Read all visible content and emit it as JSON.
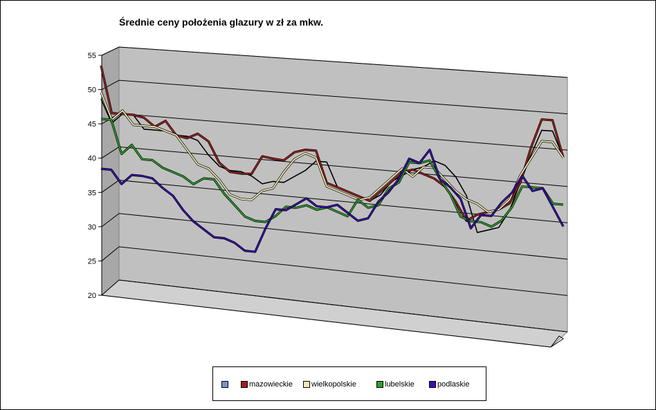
{
  "chart_data": {
    "type": "line",
    "title": "Średnie ceny położenia glazury w zł za mkw.",
    "ylim": [
      20,
      55
    ],
    "y_ticks": [
      "20",
      "25",
      "30",
      "35",
      "40",
      "45",
      "50",
      "55"
    ],
    "grid": true,
    "style": "3d",
    "legend_position": "bottom",
    "series": [
      {
        "name": "",
        "color": "#7f8fd6",
        "values": []
      },
      {
        "name": "mazowieckie",
        "color": "#9e2020",
        "values": [
          52,
          45,
          45,
          45,
          44.7,
          43.5,
          44.5,
          42.5,
          42.2,
          43,
          42,
          39,
          37.8,
          37.7,
          37.8,
          40.5,
          40.3,
          40.2,
          41.5,
          42,
          42,
          37.5,
          37,
          36.5,
          36,
          35.5,
          37,
          38.5,
          40,
          40.5,
          40,
          39.5,
          38.5,
          36.5,
          34,
          35,
          35.5,
          36,
          37,
          40,
          45,
          49,
          49,
          44
        ]
      },
      {
        "name": "wielkopolskie",
        "color": "#f0ecb4",
        "values": [
          48,
          44,
          45.5,
          43.5,
          43.5,
          43.5,
          43,
          42.5,
          40.5,
          38.5,
          38,
          36.5,
          34.5,
          34,
          34,
          35.5,
          36,
          38.5,
          40.5,
          41.5,
          41,
          37,
          36.5,
          36,
          35.5,
          36,
          37.5,
          39,
          40.5,
          39.5,
          41,
          41,
          39.5,
          38,
          37,
          36.5,
          35.5,
          36,
          37.5,
          41,
          43.5,
          46,
          46,
          44
        ]
      },
      {
        "name": "lubelskie",
        "color": "#2da02d",
        "values": [
          44,
          44,
          39,
          40.5,
          38.5,
          38.5,
          37.5,
          37,
          36.5,
          35.5,
          36.5,
          36.5,
          34.5,
          33,
          31.5,
          31,
          31,
          32,
          33.5,
          33.5,
          34,
          33.5,
          34,
          33.5,
          33,
          35.5,
          34.5,
          35,
          37.5,
          38.5,
          41.5,
          41.5,
          42,
          39.5,
          37.5,
          34.5,
          34,
          34,
          33.5,
          34.5,
          36.5,
          39.5,
          39.5,
          39.5,
          37.5,
          37.5
        ]
      },
      {
        "name": "podlaskie",
        "color": "#3a10b0",
        "values": [
          36.5,
          36.5,
          34.5,
          36,
          36,
          35.8,
          34.5,
          33.5,
          31.5,
          30,
          29,
          28,
          28,
          27.5,
          26.5,
          26.5,
          30,
          33,
          33,
          34,
          35,
          34,
          34,
          34.5,
          33.5,
          32.5,
          33,
          35.5,
          37,
          39,
          42,
          41.5,
          43.5,
          39.5,
          38.5,
          37,
          33,
          35,
          35,
          37,
          38.5,
          41,
          39,
          39.5,
          37,
          34.5
        ]
      },
      {
        "name": "",
        "color": "#000000",
        "values": [
          47,
          43.5,
          45,
          45,
          43,
          43,
          43,
          42.5,
          42.5,
          42,
          40,
          38.5,
          38,
          38,
          37.5,
          36.5,
          37,
          37,
          38,
          39,
          40.5,
          40.5,
          37,
          36.5,
          36,
          35.5,
          36.5,
          38.5,
          39.5,
          40.5,
          41,
          42,
          41.5,
          40,
          37.5,
          32.5,
          33,
          33.5,
          36,
          40,
          44,
          47.5,
          47.5,
          44
        ]
      }
    ]
  },
  "legend": {
    "items": [
      {
        "label": "",
        "color": "#7f8fd6"
      },
      {
        "label": "mazowieckie",
        "color": "#9e2020"
      },
      {
        "label": "wielkopolskie",
        "color": "#f0ecb4"
      },
      {
        "label": "lubelskie",
        "color": "#2da02d"
      },
      {
        "label": "podlaskie",
        "color": "#3a10b0"
      }
    ]
  }
}
